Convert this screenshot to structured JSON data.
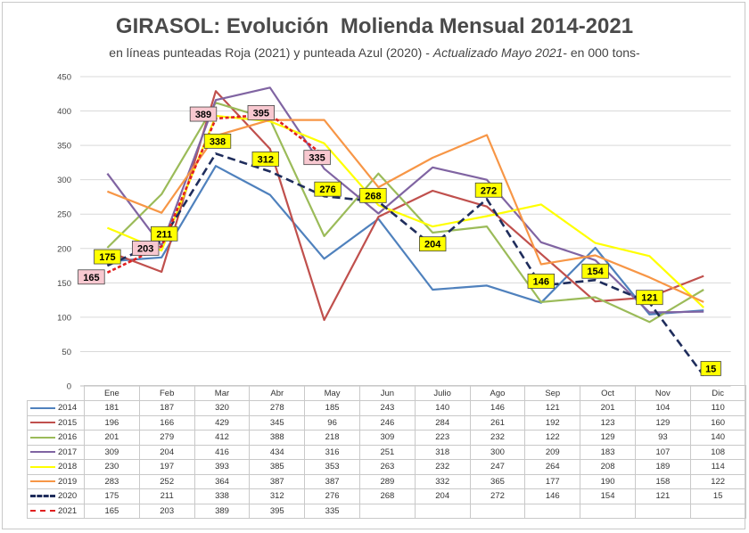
{
  "title": "GIRASOL: Evolución  Molienda Mensual 2014-2021",
  "subtitle_plain": "en líneas punteadas Roja (2021) y punteada Azul (2020) - ",
  "subtitle_italic": "Actualizado Mayo 2021",
  "subtitle_tail": "- en 000 tons-",
  "chart_data": {
    "type": "line",
    "categories": [
      "Ene",
      "Feb",
      "Mar",
      "Abr",
      "May",
      "Jun",
      "Julio",
      "Ago",
      "Sep",
      "Oct",
      "Nov",
      "Dic"
    ],
    "ylim": [
      0,
      450
    ],
    "yticks": [
      0,
      50,
      100,
      150,
      200,
      250,
      300,
      350,
      400,
      450
    ],
    "grid": true,
    "legend": "table-below",
    "series": [
      {
        "name": "2014",
        "color": "#4f81bd",
        "dash": "solid",
        "values": [
          181,
          187,
          320,
          278,
          185,
          243,
          140,
          146,
          121,
          201,
          104,
          110
        ]
      },
      {
        "name": "2015",
        "color": "#c0504d",
        "dash": "solid",
        "values": [
          196,
          166,
          429,
          345,
          96,
          246,
          284,
          261,
          192,
          123,
          129,
          160
        ]
      },
      {
        "name": "2016",
        "color": "#9bbb59",
        "dash": "solid",
        "values": [
          201,
          279,
          412,
          388,
          218,
          309,
          223,
          232,
          122,
          129,
          93,
          140
        ]
      },
      {
        "name": "2017",
        "color": "#8064a2",
        "dash": "solid",
        "values": [
          309,
          204,
          416,
          434,
          316,
          251,
          318,
          300,
          209,
          183,
          107,
          108
        ]
      },
      {
        "name": "2018",
        "color": "#ffff00",
        "dash": "solid",
        "values": [
          230,
          197,
          393,
          385,
          353,
          263,
          232,
          247,
          264,
          208,
          189,
          114
        ]
      },
      {
        "name": "2019",
        "color": "#f79646",
        "dash": "solid",
        "values": [
          283,
          252,
          364,
          387,
          387,
          289,
          332,
          365,
          177,
          190,
          158,
          122
        ]
      },
      {
        "name": "2020",
        "color": "#1f2d5c",
        "dash": "dashed",
        "values": [
          175,
          211,
          338,
          312,
          276,
          268,
          204,
          272,
          146,
          154,
          121,
          15
        ]
      },
      {
        "name": "2021",
        "color": "#e02020",
        "dash": "dotted",
        "values": [
          165,
          203,
          389,
          395,
          335,
          null,
          null,
          null,
          null,
          null,
          null,
          null
        ]
      }
    ],
    "labels_2020": [
      "175",
      "211",
      "338",
      "312",
      "276",
      "268",
      "204",
      "272",
      "146",
      "154",
      "121",
      "15"
    ],
    "labels_2021": [
      "165",
      "203",
      "389",
      "395",
      "335"
    ]
  }
}
